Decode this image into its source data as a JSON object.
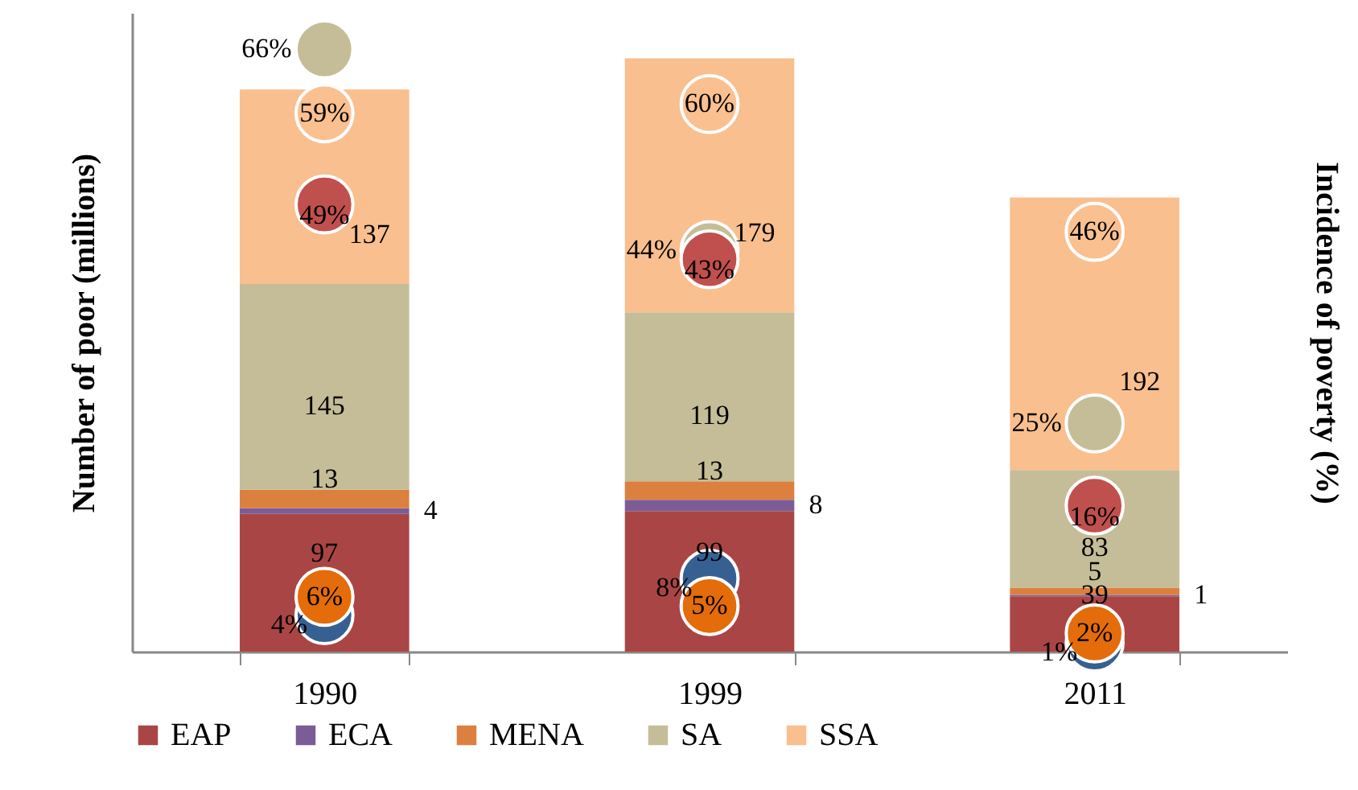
{
  "chart_data": {
    "type": "bar",
    "categories": [
      "1990",
      "1999",
      "2011"
    ],
    "stacked": true,
    "data_labels": true,
    "legend": "bottom",
    "grid": false,
    "tick_labels": "x",
    "marker": "circle",
    "ylabel": "Number of poor (millions)",
    "y2label": "Incidence of poverty (%)",
    "ylim": [
      0,
      450
    ],
    "series": [
      {
        "name": "EAP",
        "type": "bar",
        "color": "#a94645",
        "values": [
          97,
          99,
          39
        ]
      },
      {
        "name": "ECA",
        "type": "bar",
        "color": "#7b5c97",
        "values": [
          4,
          8,
          1
        ]
      },
      {
        "name": "MENA",
        "type": "bar",
        "color": "#dc8040",
        "values": [
          13,
          13,
          5
        ]
      },
      {
        "name": "SA",
        "type": "bar",
        "color": "#c4bd97",
        "values": [
          145,
          119,
          83
        ]
      },
      {
        "name": "SSA",
        "type": "bar",
        "color": "#f9bf8f",
        "values": [
          137,
          179,
          192
        ]
      },
      {
        "type": "scatter",
        "axis": "y2",
        "color": "#fac090",
        "values": [
          59,
          60,
          46
        ],
        "value_labels": [
          "59%",
          "60%",
          "46%"
        ]
      },
      {
        "type": "scatter",
        "axis": "y2",
        "color": "#c4bd97",
        "values": [
          66,
          44,
          25
        ],
        "value_labels": [
          "66%",
          "44%",
          "25%"
        ]
      },
      {
        "type": "scatter",
        "axis": "y2",
        "color": "#c0504d",
        "values": [
          49,
          43,
          16
        ],
        "value_labels": [
          "49%",
          "43%",
          "16%"
        ]
      },
      {
        "type": "scatter",
        "axis": "y2",
        "color": "#376092",
        "values": [
          4,
          8,
          1
        ],
        "value_labels": [
          "4%",
          "8%",
          "1%"
        ]
      },
      {
        "type": "scatter",
        "axis": "y2",
        "color": "#e46c0a",
        "values": [
          6,
          5,
          2
        ],
        "value_labels": [
          "6%",
          "5%",
          "2%"
        ]
      }
    ]
  }
}
